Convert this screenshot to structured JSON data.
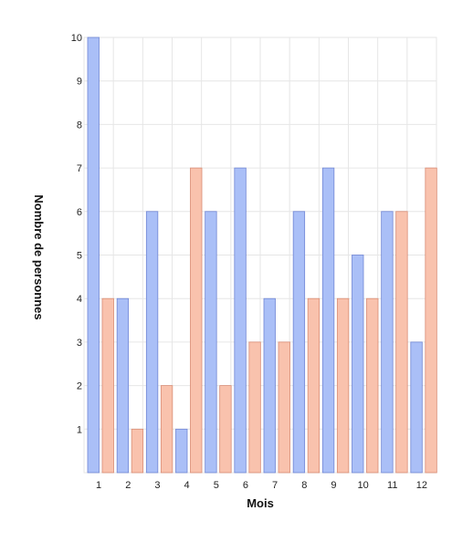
{
  "chart_data": {
    "type": "bar",
    "xlabel": "Mois",
    "ylabel": "Nombre de personnes",
    "categories": [
      "1",
      "2",
      "3",
      "4",
      "5",
      "6",
      "7",
      "8",
      "9",
      "10",
      "11",
      "12"
    ],
    "ylim": [
      0,
      10
    ],
    "y_ticks": [
      1,
      2,
      3,
      4,
      5,
      6,
      7,
      8,
      9,
      10
    ],
    "grid": true,
    "series": [
      {
        "color": "#aabff7",
        "stroke": "#7086d4",
        "values": [
          10,
          4,
          6,
          1,
          6,
          7,
          4,
          6,
          7,
          5,
          6,
          3
        ]
      },
      {
        "color": "#f9c2ad",
        "stroke": "#d98c74",
        "values": [
          4,
          1,
          2,
          7,
          2,
          3,
          3,
          4,
          4,
          4,
          6,
          7
        ]
      }
    ]
  }
}
